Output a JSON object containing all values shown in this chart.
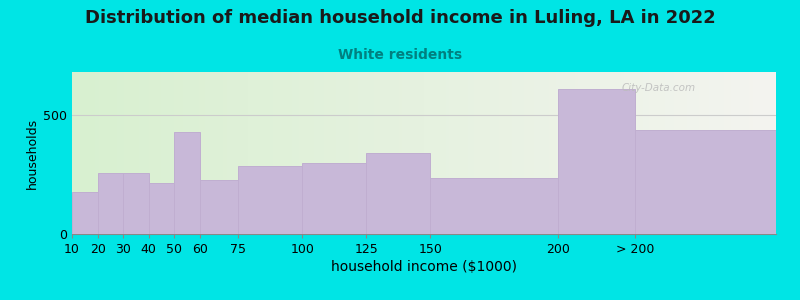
{
  "title": "Distribution of median household income in Luling, LA in 2022",
  "subtitle": "White residents",
  "xlabel": "household income ($1000)",
  "ylabel": "households",
  "bar_labels": [
    "10",
    "20",
    "30",
    "40",
    "50",
    "60",
    "75",
    "100",
    "125",
    "150",
    "200",
    "> 200"
  ],
  "bar_left_edges": [
    10,
    20,
    30,
    40,
    50,
    60,
    75,
    100,
    125,
    150,
    200,
    230
  ],
  "bar_widths": [
    10,
    10,
    10,
    10,
    10,
    15,
    25,
    25,
    25,
    50,
    30,
    55
  ],
  "bar_values": [
    175,
    255,
    255,
    215,
    430,
    225,
    285,
    300,
    340,
    235,
    610,
    435
  ],
  "bar_color": "#c8b8d8",
  "bar_edge_color": "#c0aed0",
  "bg_outer": "#00e5e5",
  "bg_plot_left": "#d8f0d0",
  "bg_plot_right": "#f4f4f0",
  "title_fontsize": 13,
  "subtitle_color": "#008080",
  "subtitle_fontsize": 10,
  "xlabel_fontsize": 10,
  "ylabel_fontsize": 9,
  "tick_fontsize": 9,
  "ylim": [
    0,
    680
  ],
  "yticks": [
    0,
    500
  ],
  "watermark": "City-Data.com"
}
